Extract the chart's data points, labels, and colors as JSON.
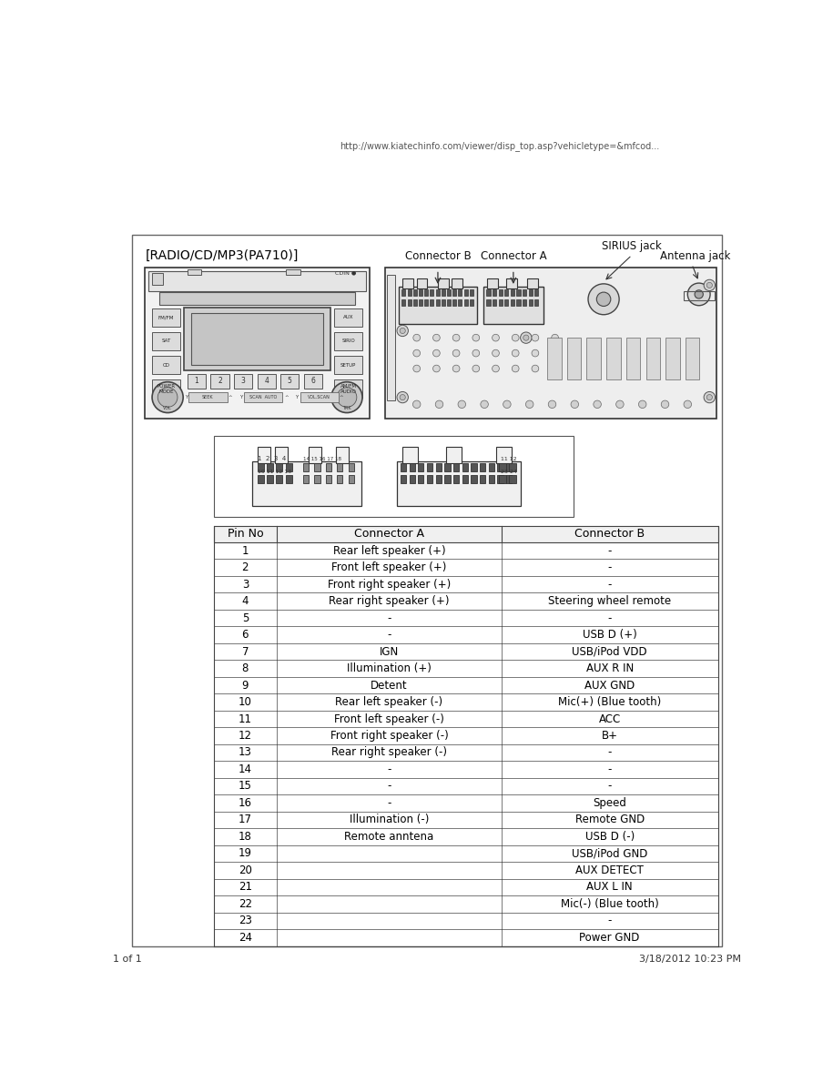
{
  "url_text": "http://www.kiatechinfo.com/viewer/disp_top.asp?vehicletype=&mfcod...",
  "page_text": "1 of 1",
  "date_text": "3/18/2012 10:23 PM",
  "title": "[RADIO/CD/MP3(PA710)]",
  "connector_b_label": "Connector B",
  "connector_a_label": "Connector A",
  "sirius_label": "SIRIUS jack",
  "antenna_label": "Antenna jack",
  "table_header": [
    "Pin No",
    "Connector A",
    "Connector B"
  ],
  "table_data": [
    [
      "1",
      "Rear left speaker (+)",
      "-"
    ],
    [
      "2",
      "Front left speaker (+)",
      "-"
    ],
    [
      "3",
      "Front right speaker (+)",
      "-"
    ],
    [
      "4",
      "Rear right speaker (+)",
      "Steering wheel remote"
    ],
    [
      "5",
      "-",
      "-"
    ],
    [
      "6",
      "-",
      "USB D (+)"
    ],
    [
      "7",
      "IGN",
      "USB/iPod VDD"
    ],
    [
      "8",
      "Illumination (+)",
      "AUX R IN"
    ],
    [
      "9",
      "Detent",
      "AUX GND"
    ],
    [
      "10",
      "Rear left speaker (-)",
      "Mic(+) (Blue tooth)"
    ],
    [
      "11",
      "Front left speaker (-)",
      "ACC"
    ],
    [
      "12",
      "Front right speaker (-)",
      "B+"
    ],
    [
      "13",
      "Rear right speaker (-)",
      "-"
    ],
    [
      "14",
      "-",
      "-"
    ],
    [
      "15",
      "-",
      "-"
    ],
    [
      "16",
      "-",
      "Speed"
    ],
    [
      "17",
      "Illumination (-)",
      "Remote GND"
    ],
    [
      "18",
      "Remote anntena",
      "USB D (-)"
    ],
    [
      "19",
      "",
      "USB/iPod GND"
    ],
    [
      "20",
      "",
      "AUX DETECT"
    ],
    [
      "21",
      "",
      "AUX L IN"
    ],
    [
      "22",
      "",
      "Mic(-) (Blue tooth)"
    ],
    [
      "23",
      "",
      "-"
    ],
    [
      "24",
      "",
      "Power GND"
    ]
  ],
  "bg_color": "#ffffff",
  "text_color": "#000000",
  "table_border_color": "#444444",
  "outer_border_color": "#666666"
}
